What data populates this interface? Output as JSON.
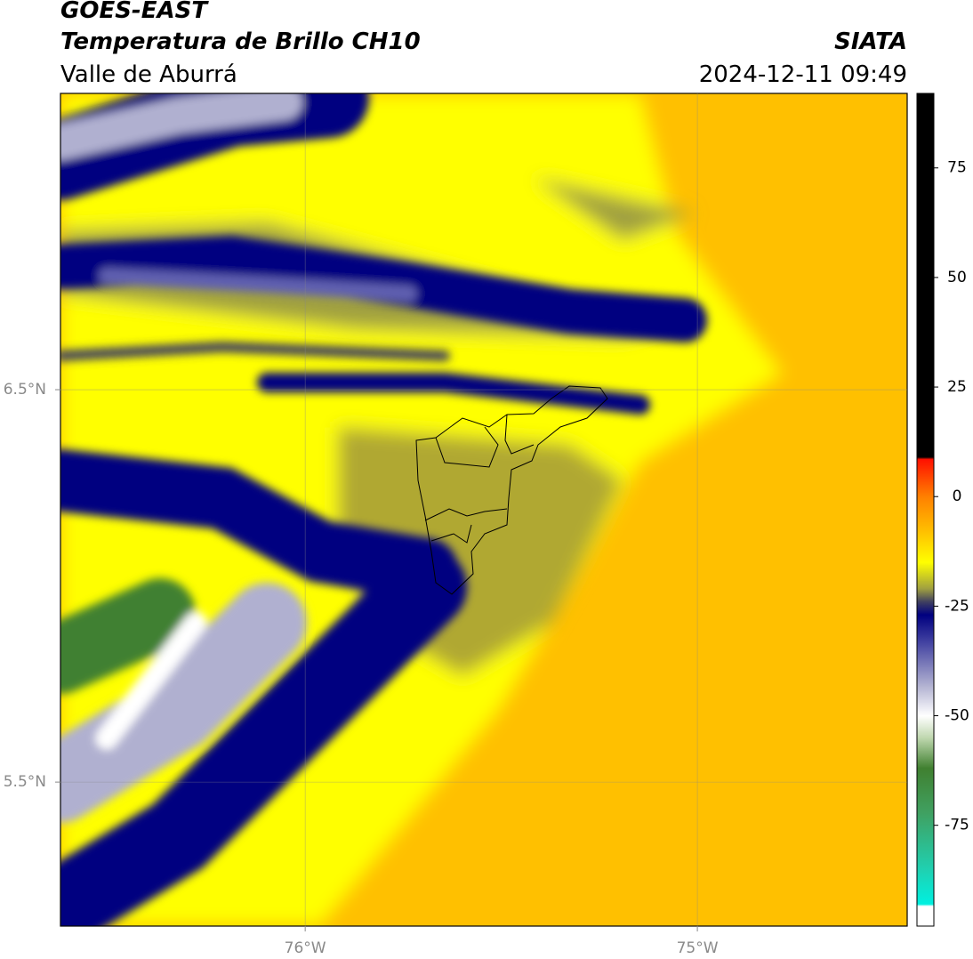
{
  "header": {
    "title": "GOES-EAST",
    "subtitle": "Temperatura de Brillo CH10",
    "region": "Valle de Aburrá",
    "source": "SIATA",
    "datetime": "2024-12-11 09:49"
  },
  "map": {
    "xlim": [
      -76.624,
      -74.465
    ],
    "ylim": [
      5.133,
      7.255
    ],
    "xticks": [
      {
        "value": -76,
        "label": "76°W"
      },
      {
        "value": -75,
        "label": "75°W"
      }
    ],
    "yticks": [
      {
        "value": 6.5,
        "label": "6.5°N"
      },
      {
        "value": 5.5,
        "label": "5.5°N"
      }
    ],
    "grid": true
  },
  "colorbar": {
    "lim": [
      -98,
      92
    ],
    "ticks": [
      75,
      50,
      25,
      0,
      -25,
      -50,
      -75
    ],
    "stops": [
      {
        "value": 92,
        "color": "#000000"
      },
      {
        "value": 9,
        "color": "#000000"
      },
      {
        "value": 8.5,
        "color": "#ff1000"
      },
      {
        "value": 0,
        "color": "#ff8000"
      },
      {
        "value": -8,
        "color": "#ffc000"
      },
      {
        "value": -15,
        "color": "#ffff00"
      },
      {
        "value": -21,
        "color": "#a0a040"
      },
      {
        "value": -24,
        "color": "#404060"
      },
      {
        "value": -27,
        "color": "#000080"
      },
      {
        "value": -33,
        "color": "#4040a0"
      },
      {
        "value": -43,
        "color": "#b0b0d0"
      },
      {
        "value": -50,
        "color": "#ffffff"
      },
      {
        "value": -55,
        "color": "#c0d8b0"
      },
      {
        "value": -62,
        "color": "#408030"
      },
      {
        "value": -72,
        "color": "#40a060"
      },
      {
        "value": -85,
        "color": "#20d0b0"
      },
      {
        "value": -93,
        "color": "#00f0e0"
      },
      {
        "value": -93.5,
        "color": "#ffffff"
      },
      {
        "value": -98,
        "color": "#ffffff"
      }
    ]
  }
}
